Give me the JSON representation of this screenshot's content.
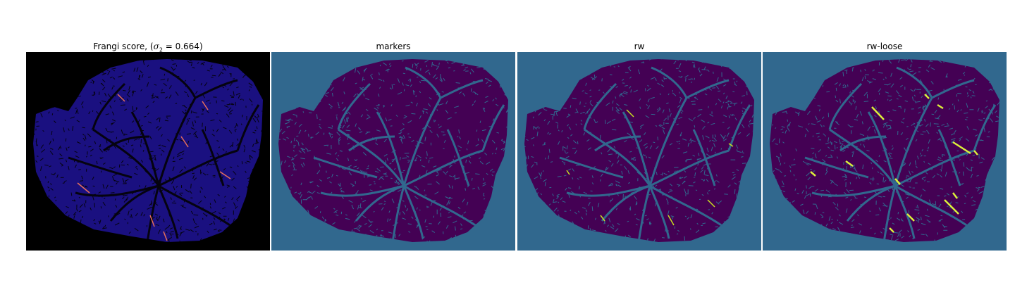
{
  "panels": [
    {
      "id": "frangi",
      "title_prefix": "Frangi score, (",
      "title_symbol": "σ",
      "title_subscript": "2",
      "title_suffix": " = 0.664)",
      "background": "#000000",
      "fill": "#1a1080",
      "line": "#05030f",
      "highlight": "#e8705a",
      "icon": "vessel-score-image"
    },
    {
      "id": "markers",
      "title": "markers",
      "background": "#31688e",
      "fill": "#440154",
      "line": "#31688e",
      "highlight": null,
      "icon": "vessel-markers-image"
    },
    {
      "id": "rw",
      "title": "rw",
      "background": "#31688e",
      "fill": "#440154",
      "line": "#31688e",
      "highlight": "#c8e020",
      "icon": "vessel-rw-image"
    },
    {
      "id": "rw-loose",
      "title": "rw-loose",
      "background": "#31688e",
      "fill": "#440154",
      "line": "#31688e",
      "highlight": "#dcf03a",
      "icon": "vessel-rw-loose-image"
    }
  ]
}
